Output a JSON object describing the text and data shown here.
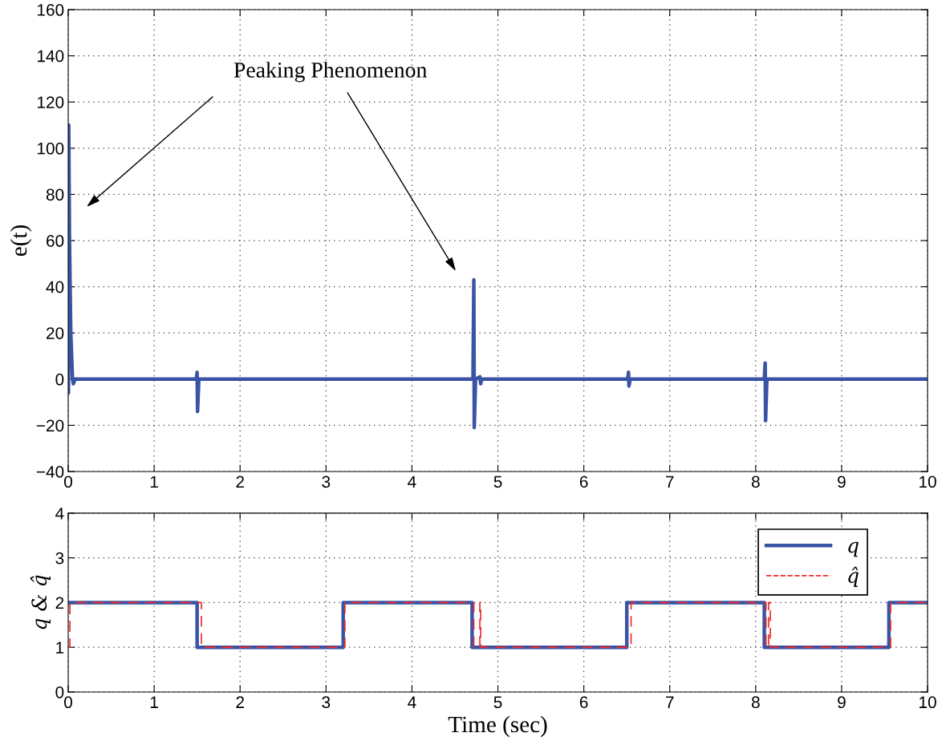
{
  "chart_data": [
    {
      "type": "line",
      "ylabel": "e(t)",
      "color": "#3a53a4",
      "line_style": "solid",
      "grid": true,
      "x": [
        0,
        0.003,
        0.006,
        0.015,
        0.03,
        0.05,
        0.06,
        0.08,
        1.49,
        1.5,
        1.505,
        1.52,
        4.71,
        4.72,
        4.725,
        4.74,
        4.79,
        4.8,
        4.81,
        6.51,
        6.52,
        6.525,
        6.54,
        8.1,
        8.11,
        8.115,
        8.13,
        10
      ],
      "values": [
        0,
        -6,
        110,
        60,
        20,
        0,
        -2,
        0,
        0,
        3,
        -14,
        0,
        0,
        43,
        -21,
        0,
        1,
        -2,
        0,
        0,
        3,
        -3,
        0,
        0,
        7,
        -18,
        0,
        0
      ],
      "xlim": [
        0,
        10
      ],
      "ylim": [
        -40,
        160
      ],
      "xticks": [
        0,
        1,
        2,
        3,
        4,
        5,
        6,
        7,
        8,
        9,
        10
      ],
      "yticks": [
        -40,
        -20,
        0,
        20,
        40,
        60,
        80,
        100,
        120,
        140,
        160
      ],
      "annotations": [
        "Peaking Phenomenon"
      ]
    },
    {
      "type": "step",
      "ylabel": "q & q̂",
      "xlabel": "Time (sec)",
      "grid": true,
      "legend": "top right",
      "series": [
        {
          "name": "q",
          "color": "#3a53a4",
          "line_style": "solid",
          "x": [
            0,
            1.5,
            3.2,
            4.7,
            6.5,
            8.1,
            9.55,
            10
          ],
          "values": [
            2,
            1,
            2,
            1,
            2,
            1,
            2,
            2
          ]
        },
        {
          "name": "q̂",
          "color": "#ee2a2a",
          "line_style": "dashed",
          "x": [
            0,
            0.02,
            1.55,
            3.22,
            4.72,
            4.79,
            4.8,
            6.55,
            8.12,
            8.15,
            8.17,
            9.57,
            10
          ],
          "values": [
            1,
            2,
            1,
            2,
            1,
            2,
            1,
            2,
            1,
            2,
            1,
            2,
            2
          ]
        }
      ],
      "xlim": [
        0,
        10
      ],
      "ylim": [
        0,
        4
      ],
      "xticks": [
        0,
        1,
        2,
        3,
        4,
        5,
        6,
        7,
        8,
        9,
        10
      ],
      "yticks": [
        0,
        1,
        2,
        3,
        4
      ]
    }
  ]
}
